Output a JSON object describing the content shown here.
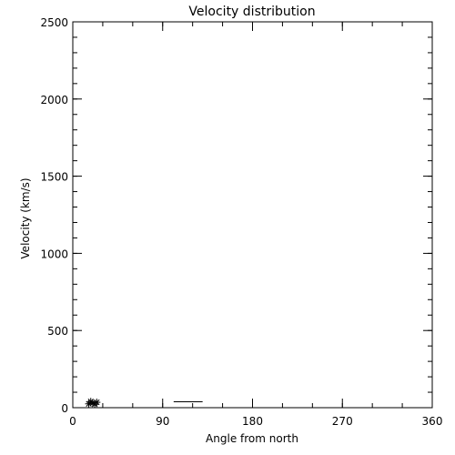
{
  "chart_data": {
    "type": "scatter",
    "title": "Velocity distribution",
    "xlabel": "Angle from north",
    "ylabel": "Velocity (km/s)",
    "xlim": [
      0,
      360
    ],
    "ylim": [
      0,
      2500
    ],
    "xticks": [
      0,
      90,
      180,
      270,
      360
    ],
    "yticks": [
      0,
      500,
      1000,
      1500,
      2000,
      2500
    ],
    "x_minor_step": 30,
    "y_minor_step": 100,
    "grid": false,
    "series": [
      {
        "marker": "asterisk",
        "points": [
          {
            "x": 16,
            "y": 25
          },
          {
            "x": 18,
            "y": 40
          },
          {
            "x": 20,
            "y": 30
          },
          {
            "x": 22,
            "y": 22
          },
          {
            "x": 24,
            "y": 35
          }
        ]
      }
    ],
    "segments": [
      {
        "x": [
          101,
          130
        ],
        "y": [
          38,
          38
        ]
      }
    ]
  }
}
